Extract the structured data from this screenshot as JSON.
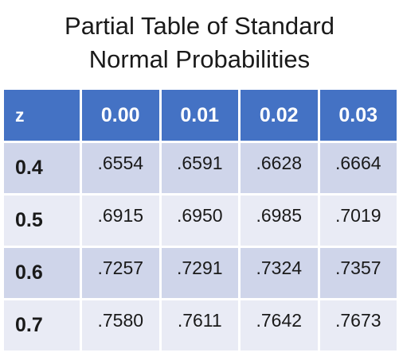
{
  "title": {
    "line1": "Partial Table of Standard",
    "line2": "Normal Probabilities"
  },
  "table": {
    "headers": [
      "z",
      "0.00",
      "0.01",
      "0.02",
      "0.03"
    ],
    "rows": [
      {
        "z": "0.4",
        "values": [
          ".6554",
          ".6591",
          ".6628",
          ".6664"
        ]
      },
      {
        "z": "0.5",
        "values": [
          ".6915",
          ".6950",
          ".6985",
          ".7019"
        ]
      },
      {
        "z": "0.6",
        "values": [
          ".7257",
          ".7291",
          ".7324",
          ".7357"
        ]
      },
      {
        "z": "0.7",
        "values": [
          ".7580",
          ".7611",
          ".7642",
          ".7673"
        ]
      }
    ]
  },
  "colors": {
    "header_bg": "#4472c4",
    "row_dark": "#cfd5ea",
    "row_light": "#e9ebf5"
  }
}
